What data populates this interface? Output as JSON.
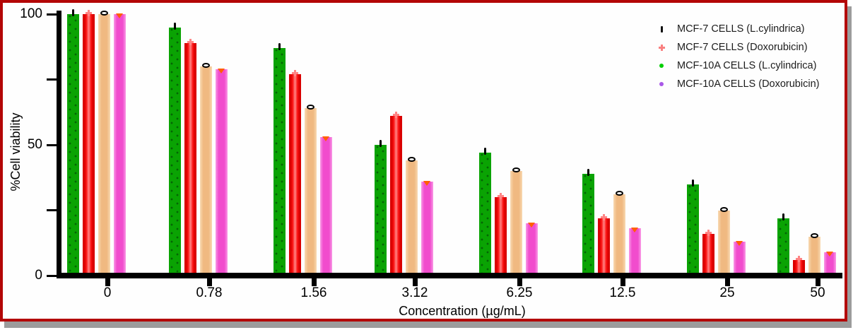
{
  "frame": {
    "border_color": "#b30606",
    "shadow_color": "#9c9c9c",
    "background": "#fefefe"
  },
  "chart_data": {
    "type": "bar",
    "title": "",
    "xlabel": "Concentration (µg/mL)",
    "ylabel": "%Cell viability",
    "ylim": [
      0,
      100
    ],
    "yticks_major": [
      0,
      50,
      100
    ],
    "ytick_labels": [
      "0",
      "50",
      "100"
    ],
    "yticks_minor": [
      25,
      75
    ],
    "grid": false,
    "legend_position": "top-right",
    "categories": [
      "0",
      "0.78",
      "1.56",
      "3.12",
      "6.25",
      "12.5",
      "25",
      "50"
    ],
    "series": [
      {
        "name": "MCF-7 CELLS (L.cylindrica)",
        "bar_color": "#0aa303",
        "legend_marker": "black-tick",
        "top_marker": "black-tick",
        "values": [
          100,
          95,
          87,
          50,
          47,
          39,
          35,
          22
        ]
      },
      {
        "name": "MCF-7 CELLS (Doxorubicin)",
        "bar_color": "#fb1111",
        "legend_marker": "salmon-plus",
        "top_marker": "salmon-plus",
        "values": [
          100,
          89,
          77,
          61,
          30,
          22,
          16,
          6
        ]
      },
      {
        "name": "MCF-10A CELLS (L.cylindrica)",
        "bar_color": "#f0b981",
        "legend_marker": "green-dot",
        "top_marker": "black-ring",
        "values": [
          100,
          80,
          64,
          44,
          40,
          31,
          25,
          15
        ]
      },
      {
        "name": "MCF-10A CELLS (Doxorubicin)",
        "bar_color": "#f14ccd",
        "legend_marker": "violet-dot",
        "top_marker": "orange-triangle",
        "values": [
          100,
          79,
          53,
          36,
          20,
          18,
          13,
          9
        ]
      }
    ]
  }
}
